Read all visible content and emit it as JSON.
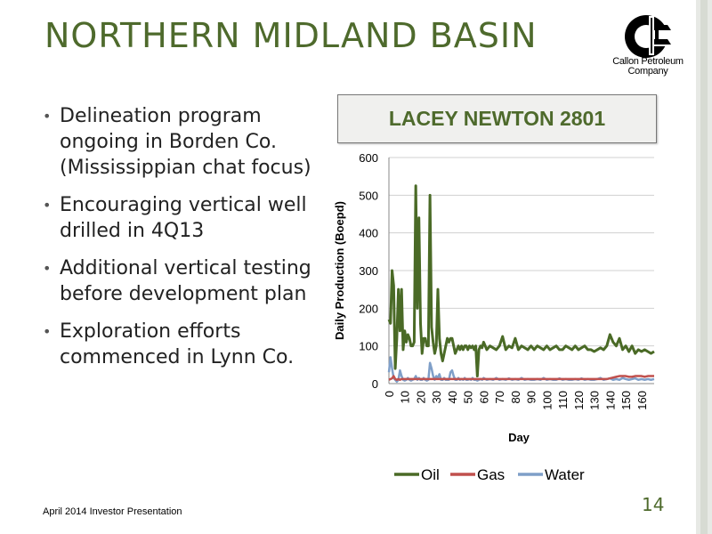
{
  "slide": {
    "title": "NORTHERN MIDLAND BASIN",
    "logo_name": "Callon Petroleum Company",
    "logo_lines": [
      "Callon Petroleum",
      "Company"
    ],
    "bullets": [
      "Delineation program ongoing in Borden Co. (Mississippian chat focus)",
      "Encouraging vertical well drilled in 4Q13",
      "Additional vertical testing before development plan",
      "Exploration efforts commenced in Lynn Co."
    ],
    "footer": "April 2014 Investor Presentation",
    "page_number": "14",
    "accent_color": "#4e6a2c"
  },
  "chart_data": {
    "type": "line",
    "title": "LACEY NEWTON 2801",
    "xlabel": "Day",
    "ylabel": "Daily Production (Boepd)",
    "xlim": [
      0,
      168
    ],
    "ylim": [
      0,
      600
    ],
    "x_ticks": [
      0,
      10,
      20,
      30,
      40,
      50,
      60,
      70,
      80,
      90,
      100,
      110,
      120,
      130,
      140,
      150,
      160
    ],
    "y_ticks": [
      0,
      100,
      200,
      300,
      400,
      500,
      600
    ],
    "grid": true,
    "legend": "bottom",
    "x": [
      0,
      1,
      2,
      3,
      4,
      5,
      6,
      7,
      8,
      9,
      10,
      11,
      12,
      13,
      14,
      15,
      16,
      17,
      18,
      19,
      20,
      21,
      22,
      23,
      24,
      25,
      26,
      27,
      28,
      29,
      30,
      31,
      32,
      33,
      34,
      35,
      36,
      37,
      38,
      39,
      40,
      41,
      42,
      43,
      44,
      45,
      46,
      47,
      48,
      49,
      50,
      51,
      52,
      53,
      54,
      55,
      56,
      57,
      58,
      59,
      60,
      62,
      64,
      66,
      68,
      70,
      72,
      74,
      76,
      78,
      80,
      82,
      84,
      86,
      88,
      90,
      92,
      94,
      96,
      98,
      100,
      102,
      104,
      106,
      108,
      110,
      112,
      114,
      116,
      118,
      120,
      122,
      124,
      126,
      128,
      130,
      132,
      134,
      136,
      138,
      140,
      142,
      144,
      146,
      148,
      150,
      152,
      154,
      156,
      158,
      160,
      162,
      164,
      166,
      168
    ],
    "series": [
      {
        "name": "Oil",
        "color": "#4a6a26",
        "values": [
          170,
          160,
          300,
          260,
          40,
          120,
          250,
          140,
          250,
          90,
          140,
          110,
          130,
          120,
          100,
          100,
          110,
          525,
          200,
          440,
          160,
          80,
          120,
          120,
          100,
          100,
          500,
          150,
          110,
          80,
          100,
          250,
          120,
          80,
          60,
          80,
          100,
          120,
          110,
          120,
          120,
          100,
          80,
          90,
          100,
          90,
          100,
          90,
          100,
          100,
          90,
          100,
          95,
          100,
          90,
          100,
          20,
          90,
          100,
          95,
          110,
          90,
          100,
          95,
          90,
          100,
          125,
          90,
          100,
          95,
          120,
          90,
          100,
          95,
          90,
          100,
          90,
          100,
          95,
          90,
          100,
          90,
          95,
          100,
          90,
          90,
          100,
          95,
          90,
          100,
          90,
          95,
          100,
          90,
          90,
          85,
          90,
          95,
          90,
          100,
          130,
          110,
          100,
          120,
          90,
          100,
          85,
          100,
          80,
          90,
          85,
          90,
          85,
          80,
          85
        ]
      },
      {
        "name": "Gas",
        "color": "#c0504d",
        "values": [
          10,
          12,
          14,
          20,
          12,
          10,
          12,
          10,
          12,
          12,
          12,
          12,
          12,
          12,
          12,
          12,
          12,
          12,
          12,
          12,
          12,
          12,
          12,
          12,
          12,
          12,
          12,
          12,
          12,
          12,
          12,
          12,
          12,
          12,
          12,
          12,
          12,
          12,
          12,
          12,
          12,
          12,
          12,
          12,
          12,
          12,
          12,
          12,
          12,
          12,
          12,
          12,
          12,
          12,
          12,
          12,
          12,
          12,
          12,
          12,
          12,
          12,
          12,
          12,
          12,
          12,
          12,
          12,
          12,
          12,
          12,
          12,
          12,
          12,
          12,
          12,
          12,
          12,
          12,
          12,
          12,
          12,
          12,
          12,
          12,
          12,
          12,
          12,
          12,
          12,
          12,
          12,
          12,
          12,
          12,
          12,
          12,
          12,
          12,
          12,
          14,
          16,
          18,
          20,
          20,
          20,
          18,
          18,
          20,
          20,
          20,
          18,
          20,
          20,
          20
        ]
      },
      {
        "name": "Water",
        "color": "#7f9fc8",
        "values": [
          30,
          70,
          40,
          15,
          10,
          5,
          10,
          35,
          20,
          10,
          8,
          10,
          15,
          10,
          8,
          10,
          12,
          20,
          10,
          15,
          10,
          10,
          15,
          10,
          8,
          10,
          55,
          40,
          20,
          10,
          20,
          15,
          25,
          10,
          10,
          15,
          10,
          10,
          10,
          30,
          35,
          20,
          10,
          10,
          15,
          10,
          12,
          10,
          15,
          10,
          10,
          12,
          10,
          15,
          10,
          10,
          8,
          10,
          12,
          10,
          15,
          10,
          12,
          10,
          15,
          10,
          12,
          10,
          14,
          10,
          12,
          10,
          15,
          10,
          12,
          10,
          10,
          12,
          10,
          15,
          10,
          12,
          10,
          10,
          14,
          10,
          12,
          10,
          10,
          12,
          10,
          14,
          10,
          12,
          10,
          10,
          12,
          15,
          10,
          12,
          14,
          10,
          12,
          10,
          15,
          12,
          10,
          12,
          14,
          10,
          12,
          10,
          12,
          10,
          12
        ]
      }
    ]
  }
}
